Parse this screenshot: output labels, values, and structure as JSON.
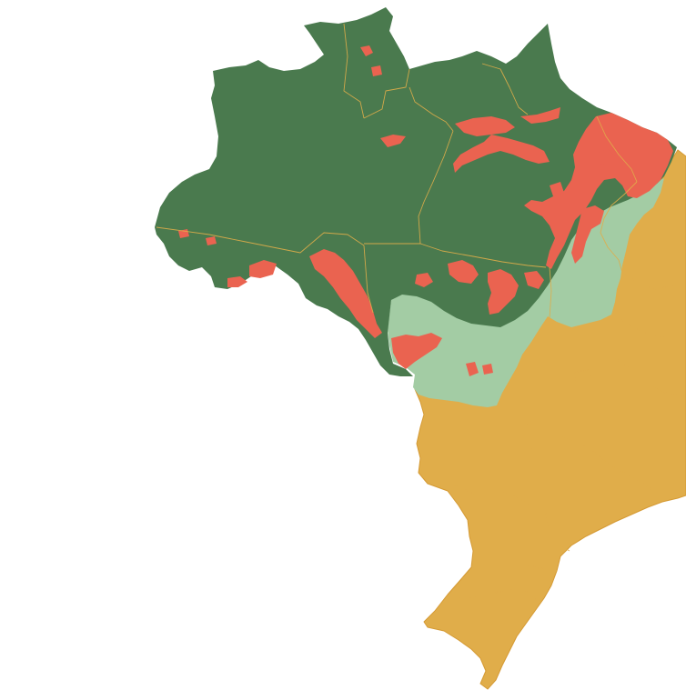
{
  "map": {
    "colors": {
      "background": "#ffffff",
      "amazon_forest": "#4a7a4e",
      "deforested": "#ea6350",
      "legal_amazon_non_forest": "#a3ccA4",
      "rest_of_country": "#e0ad4a",
      "borders": "#e0ad4a"
    },
    "regions": [
      {
        "name": "amazon-forest-region",
        "color_key": "amazon_forest"
      },
      {
        "name": "legal-amazon-non-forest-region",
        "color_key": "legal_amazon_non_forest"
      },
      {
        "name": "rest-of-country-region",
        "color_key": "rest_of_country"
      },
      {
        "name": "deforestation-areas",
        "color_key": "deforested"
      }
    ]
  }
}
